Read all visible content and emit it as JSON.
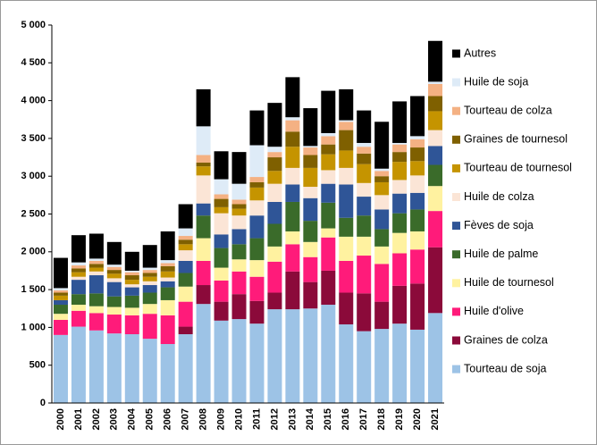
{
  "chart_data": {
    "type": "stacked_bar",
    "categories": [
      "2000",
      "2001",
      "2002",
      "2003",
      "2004",
      "2005",
      "2006",
      "2007",
      "2008",
      "2009",
      "2010",
      "2011",
      "2012",
      "2013",
      "2014",
      "2015",
      "2016",
      "2017",
      "2018",
      "2019",
      "2020",
      "2021"
    ],
    "ylim": [
      0,
      5000
    ],
    "yticks": [
      0,
      500,
      {
        "value": 1000,
        "label": "1 000"
      },
      {
        "value": 1500,
        "label": "1 500"
      },
      {
        "value": 2000,
        "label": "2 000"
      },
      {
        "value": 2500,
        "label": "2 500"
      },
      {
        "value": 3000,
        "label": "3 000"
      },
      {
        "value": 3500,
        "label": "3 500"
      },
      {
        "value": 4000,
        "label": "4 000"
      },
      {
        "value": 4500,
        "label": "4 500"
      },
      {
        "value": 5000,
        "label": "5 000"
      }
    ],
    "legend": "right",
    "series": [
      {
        "name": "Tourteau de soja",
        "color": "#9dc3e6",
        "values": [
          900,
          1010,
          960,
          920,
          910,
          850,
          780,
          910,
          1310,
          1090,
          1110,
          1050,
          1240,
          1240,
          1250,
          1300,
          1040,
          950,
          980,
          1050,
          970,
          1190
        ]
      },
      {
        "name": "Graines de colza",
        "color": "#8b0a3a",
        "values": [
          0,
          0,
          0,
          0,
          0,
          0,
          0,
          100,
          250,
          250,
          330,
          300,
          220,
          500,
          350,
          450,
          420,
          500,
          360,
          500,
          610,
          870
        ]
      },
      {
        "name": "Huile d'olive",
        "color": "#ff1b7a",
        "values": [
          200,
          210,
          230,
          250,
          250,
          330,
          380,
          330,
          320,
          280,
          300,
          320,
          410,
          360,
          330,
          440,
          420,
          500,
          500,
          430,
          450,
          480
        ]
      },
      {
        "name": "Huile de tournesol",
        "color": "#fff2a0",
        "values": [
          80,
          80,
          90,
          100,
          100,
          130,
          200,
          200,
          300,
          170,
          160,
          220,
          200,
          170,
          200,
          120,
          320,
          250,
          230,
          270,
          240,
          330
        ]
      },
      {
        "name": "Huile de palme",
        "color": "#3a6b2a",
        "values": [
          120,
          140,
          170,
          140,
          160,
          150,
          170,
          180,
          300,
          260,
          200,
          290,
          300,
          390,
          280,
          340,
          250,
          280,
          230,
          260,
          290,
          280
        ]
      },
      {
        "name": "Fèves de soja",
        "color": "#2f5597",
        "values": [
          60,
          190,
          240,
          190,
          110,
          100,
          80,
          160,
          160,
          180,
          200,
          300,
          290,
          230,
          300,
          250,
          440,
          250,
          260,
          260,
          220,
          250
        ]
      },
      {
        "name": "Huile de colza",
        "color": "#fbe5d6",
        "values": [
          0,
          40,
          50,
          50,
          40,
          50,
          50,
          140,
          370,
          280,
          180,
          200,
          240,
          220,
          150,
          180,
          220,
          180,
          190,
          180,
          230,
          210
        ]
      },
      {
        "name": "Tourteau de tournesol",
        "color": "#c59400",
        "values": [
          60,
          60,
          50,
          60,
          60,
          60,
          80,
          80,
          120,
          80,
          90,
          170,
          170,
          280,
          250,
          210,
          230,
          250,
          170,
          240,
          190,
          250
        ]
      },
      {
        "name": "Graines de tournesol",
        "color": "#7f6000",
        "values": [
          40,
          50,
          50,
          50,
          60,
          50,
          70,
          60,
          50,
          110,
          60,
          70,
          180,
          200,
          170,
          130,
          270,
          140,
          80,
          130,
          180,
          200
        ]
      },
      {
        "name": "Tourteau de colza",
        "color": "#f4b183",
        "values": [
          30,
          40,
          40,
          40,
          40,
          40,
          40,
          50,
          100,
          60,
          60,
          70,
          70,
          150,
          100,
          110,
          110,
          90,
          70,
          100,
          110,
          160
        ]
      },
      {
        "name": "Huile de soja",
        "color": "#deebf7",
        "values": [
          30,
          40,
          30,
          30,
          20,
          30,
          40,
          100,
          380,
          200,
          210,
          420,
          70,
          40,
          20,
          40,
          20,
          50,
          30,
          20,
          40,
          30
        ]
      },
      {
        "name": "Autres",
        "color": "#000000",
        "values": [
          400,
          360,
          330,
          300,
          250,
          300,
          380,
          320,
          490,
          370,
          420,
          460,
          580,
          530,
          500,
          560,
          410,
          430,
          620,
          550,
          530,
          540
        ]
      }
    ]
  }
}
